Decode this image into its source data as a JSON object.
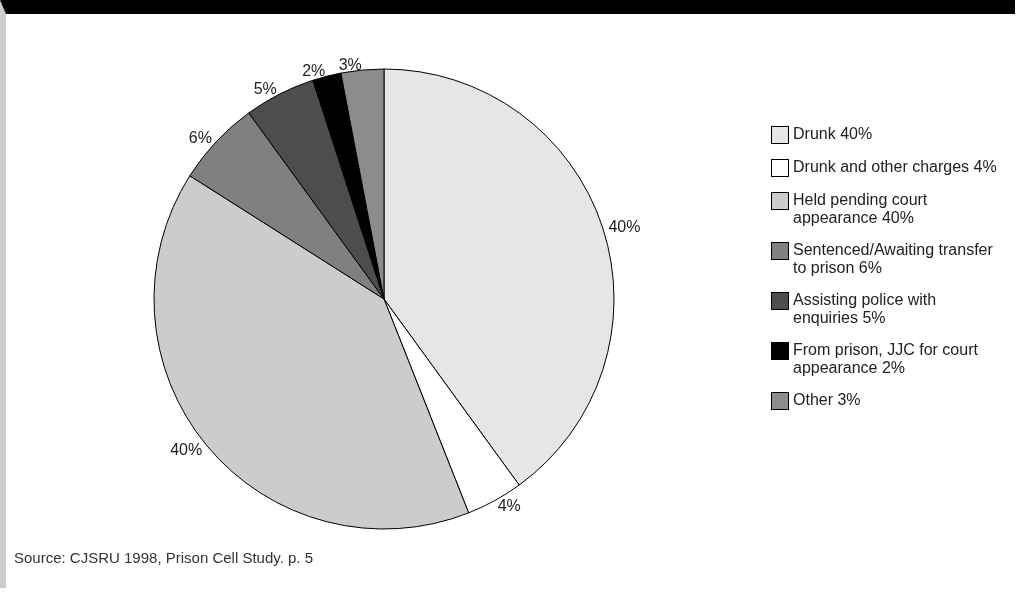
{
  "chart_data": {
    "type": "pie",
    "categories": [
      "Drunk 40%",
      "Drunk and other charges 4%",
      "Held pending court appearance 40%",
      "Sentenced/Awaiting transfer to prison 6%",
      "Assisting police with enquiries 5%",
      "From prison, JJC for court appearance 2%",
      "Other 3%"
    ],
    "values": [
      40,
      4,
      40,
      6,
      5,
      2,
      3
    ],
    "value_labels": [
      "40%",
      "4%",
      "40%",
      "6%",
      "5%",
      "2%",
      "3%"
    ],
    "colors": [
      "#e6e6e6",
      "#ffffff",
      "#cccccc",
      "#808080",
      "#4d4d4d",
      "#000000",
      "#8c8c8c"
    ],
    "legend": "right",
    "annotations": [
      "Source: CJSRU 1998, Prison Cell Study. p. 5"
    ]
  }
}
